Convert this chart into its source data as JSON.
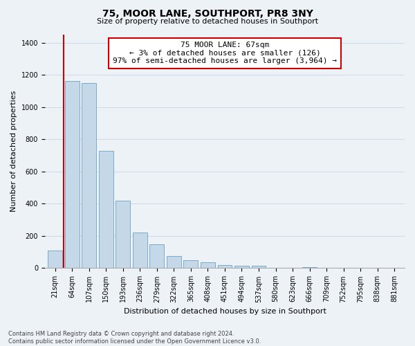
{
  "title": "75, MOOR LANE, SOUTHPORT, PR8 3NY",
  "subtitle": "Size of property relative to detached houses in Southport",
  "xlabel": "Distribution of detached houses by size in Southport",
  "ylabel": "Number of detached properties",
  "categories": [
    "21sqm",
    "64sqm",
    "107sqm",
    "150sqm",
    "193sqm",
    "236sqm",
    "279sqm",
    "322sqm",
    "365sqm",
    "408sqm",
    "451sqm",
    "494sqm",
    "537sqm",
    "580sqm",
    "623sqm",
    "666sqm",
    "709sqm",
    "752sqm",
    "795sqm",
    "838sqm",
    "881sqm"
  ],
  "values": [
    110,
    1160,
    1150,
    730,
    420,
    220,
    150,
    75,
    50,
    35,
    20,
    15,
    14,
    2,
    2,
    5,
    1,
    0,
    0,
    0,
    0
  ],
  "bar_facecolor": "#c5d8e8",
  "bar_edgecolor": "#7aaacb",
  "vline_color": "#cc0000",
  "vline_x_index": 1,
  "annotation_text_line1": "75 MOOR LANE: 67sqm",
  "annotation_text_line2": "← 3% of detached houses are smaller (126)",
  "annotation_text_line3": "97% of semi-detached houses are larger (3,964) →",
  "annotation_box_facecolor": "#ffffff",
  "annotation_box_edgecolor": "#cc0000",
  "ylim_max": 1450,
  "yticks": [
    0,
    200,
    400,
    600,
    800,
    1000,
    1200,
    1400
  ],
  "grid_color": "#d0dce8",
  "background_color": "#edf2f7",
  "footer_line1": "Contains HM Land Registry data © Crown copyright and database right 2024.",
  "footer_line2": "Contains public sector information licensed under the Open Government Licence v3.0.",
  "title_fontsize": 10,
  "subtitle_fontsize": 8,
  "ylabel_fontsize": 8,
  "xlabel_fontsize": 8,
  "tick_fontsize": 7,
  "annotation_fontsize": 8,
  "footer_fontsize": 6
}
